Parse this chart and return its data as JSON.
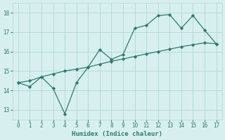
{
  "line1_x": [
    0,
    1,
    2,
    3,
    4,
    5,
    6,
    7,
    8,
    9,
    10,
    11,
    12,
    13,
    14,
    15,
    16,
    17
  ],
  "line1_y": [
    14.4,
    14.2,
    14.7,
    14.1,
    12.8,
    14.4,
    15.2,
    16.1,
    15.6,
    15.85,
    17.2,
    17.35,
    17.85,
    17.9,
    17.2,
    17.85,
    17.1,
    16.4
  ],
  "line2_x": [
    0,
    1,
    2,
    3,
    4,
    5,
    6,
    7,
    8,
    9,
    10,
    11,
    12,
    13,
    14,
    15,
    16,
    17
  ],
  "line2_y": [
    14.4,
    14.5,
    14.7,
    14.85,
    15.0,
    15.1,
    15.2,
    15.35,
    15.5,
    15.62,
    15.75,
    15.88,
    16.0,
    16.12,
    16.25,
    16.35,
    16.45,
    16.4
  ],
  "line_color": "#2a7d6e",
  "background_color": "#d8efef",
  "grid_color": "#afd8d8",
  "xlabel": "Humidex (Indice chaleur)",
  "xlim": [
    -0.5,
    17.5
  ],
  "ylim": [
    12.5,
    18.5
  ],
  "yticks": [
    13,
    14,
    15,
    16,
    17,
    18
  ],
  "xticks": [
    0,
    1,
    2,
    3,
    4,
    5,
    6,
    7,
    8,
    9,
    10,
    11,
    12,
    13,
    14,
    15,
    16,
    17
  ],
  "marker": "D",
  "markersize": 2.2,
  "linewidth": 0.9,
  "tick_fontsize": 5.5,
  "xlabel_fontsize": 6.5
}
